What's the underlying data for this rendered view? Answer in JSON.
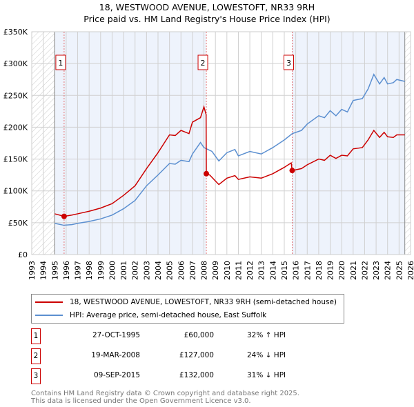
{
  "title": "18, WESTWOOD AVENUE, LOWESTOFT, NR33 9RH",
  "subtitle": "Price paid vs. HM Land Registry's House Price Index (HPI)",
  "chart_data": {
    "type": "line",
    "title": "18, WESTWOOD AVENUE, LOWESTOFT, NR33 9RH",
    "xlim": [
      1993,
      2026
    ],
    "ylim": [
      0,
      350000
    ],
    "y_ticks": [
      {
        "v": 0,
        "label": "£0"
      },
      {
        "v": 50000,
        "label": "£50K"
      },
      {
        "v": 100000,
        "label": "£100K"
      },
      {
        "v": 150000,
        "label": "£150K"
      },
      {
        "v": 200000,
        "label": "£200K"
      },
      {
        "v": 250000,
        "label": "£250K"
      },
      {
        "v": 300000,
        "label": "£300K"
      },
      {
        "v": 350000,
        "label": "£350K"
      }
    ],
    "x_ticks": [
      "1993",
      "1994",
      "1995",
      "1996",
      "1997",
      "1998",
      "1999",
      "2000",
      "2001",
      "2002",
      "2003",
      "2004",
      "2005",
      "2006",
      "2007",
      "2008",
      "2009",
      "2010",
      "2011",
      "2012",
      "2013",
      "2014",
      "2015",
      "2016",
      "2017",
      "2018",
      "2019",
      "2020",
      "2021",
      "2022",
      "2023",
      "2024",
      "2025",
      "2026"
    ],
    "grid": true,
    "colors": {
      "property": "#cc0000",
      "hpi": "#5b8fd0"
    },
    "series": [
      {
        "name": "18, WESTWOOD AVENUE, LOWESTOFT, NR33 9RH (semi-detached house)",
        "key": "property",
        "x": [
          1995,
          1995.82,
          1996.5,
          1997,
          1998,
          1999,
          2000,
          2001,
          2002,
          2003,
          2004,
          2005,
          2005.5,
          2006,
          2006.7,
          2007,
          2007.7,
          2008.0,
          2008.19,
          2008.21,
          2008.5,
          2009.3,
          2010,
          2010.7,
          2011,
          2012,
          2013,
          2014,
          2015,
          2015.6,
          2015.69,
          2016.5,
          2017,
          2018,
          2018.5,
          2019,
          2019.5,
          2020,
          2020.5,
          2021,
          2021.8,
          2022.3,
          2022.8,
          2023.3,
          2023.7,
          2024,
          2024.5,
          2024.8,
          2025.5
        ],
        "y": [
          64000,
          60000,
          62000,
          64000,
          68000,
          73000,
          80000,
          93000,
          108000,
          135000,
          160000,
          188000,
          187000,
          195000,
          190000,
          208000,
          215000,
          232000,
          220000,
          127000,
          125000,
          110000,
          120000,
          124000,
          118000,
          122000,
          120000,
          127000,
          137000,
          144000,
          132000,
          135000,
          141000,
          150000,
          148000,
          156000,
          151000,
          156000,
          155000,
          166000,
          168000,
          180000,
          195000,
          184000,
          192000,
          185000,
          184000,
          188000,
          188000
        ]
      },
      {
        "name": "HPI: Average price, semi-detached house, East Suffolk",
        "key": "hpi",
        "x": [
          1995,
          1995.8,
          1996.5,
          1997,
          1998,
          1999,
          2000,
          2001,
          2002,
          2003,
          2004,
          2005,
          2005.5,
          2006,
          2006.7,
          2007,
          2007.7,
          2008,
          2008.7,
          2009.3,
          2010,
          2010.7,
          2011,
          2012,
          2013,
          2014,
          2015,
          2015.7,
          2016.5,
          2017,
          2018,
          2018.5,
          2019,
          2019.5,
          2020,
          2020.5,
          2021,
          2021.8,
          2022.3,
          2022.8,
          2023.3,
          2023.7,
          2024,
          2024.5,
          2024.8,
          2025.5
        ],
        "y": [
          49000,
          46000,
          47000,
          49000,
          52000,
          56000,
          62000,
          72000,
          85000,
          108000,
          125000,
          143000,
          142000,
          148000,
          146000,
          158000,
          176000,
          168000,
          162000,
          147000,
          160000,
          165000,
          155000,
          162000,
          158000,
          168000,
          180000,
          190000,
          195000,
          205000,
          218000,
          215000,
          226000,
          218000,
          228000,
          224000,
          242000,
          245000,
          260000,
          283000,
          268000,
          278000,
          268000,
          270000,
          275000,
          272000
        ]
      }
    ],
    "sales": [
      {
        "n": "1",
        "x": 1995.82,
        "y": 60000
      },
      {
        "n": "2",
        "x": 2008.21,
        "y": 127000
      },
      {
        "n": "3",
        "x": 2015.69,
        "y": 132000
      }
    ],
    "shaded": [
      [
        1995,
        2008.21
      ],
      [
        2015.69,
        2025.5
      ]
    ],
    "hatched": [
      [
        1993,
        1995
      ],
      [
        2025.5,
        2026
      ]
    ]
  },
  "legend": {
    "property": "18, WESTWOOD AVENUE, LOWESTOFT, NR33 9RH (semi-detached house)",
    "hpi": "HPI: Average price, semi-detached house, East Suffolk"
  },
  "transactions": [
    {
      "n": "1",
      "date": "27-OCT-1995",
      "price": "£60,000",
      "hpi": "32% ↑ HPI"
    },
    {
      "n": "2",
      "date": "19-MAR-2008",
      "price": "£127,000",
      "hpi": "24% ↓ HPI"
    },
    {
      "n": "3",
      "date": "09-SEP-2015",
      "price": "£132,000",
      "hpi": "31% ↓ HPI"
    }
  ],
  "footer": {
    "line1": "Contains HM Land Registry data © Crown copyright and database right 2025.",
    "line2": "This data is licensed under the Open Government Licence v3.0."
  }
}
